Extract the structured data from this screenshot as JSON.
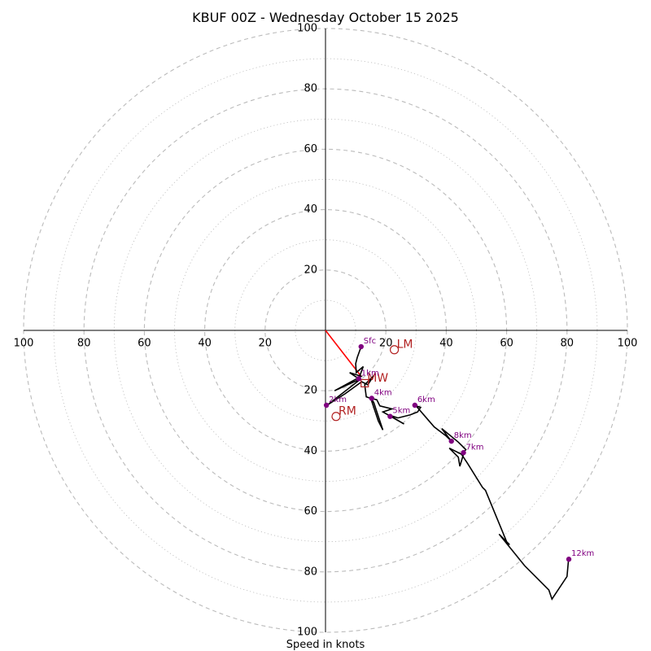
{
  "chart_data": {
    "type": "hodograph",
    "title": "KBUF 00Z - Wednesday October 15 2025",
    "xlabel": "Speed in knots",
    "ring_labels": [
      "20",
      "40",
      "60",
      "80",
      "100"
    ],
    "ring_max": 100,
    "colors": {
      "trace": "#000000",
      "points": "#800080",
      "labels": "#800080",
      "shear": "#ff0000",
      "storm_motion": "#b22222",
      "grid": "#bbbbbb",
      "axis": "#000000"
    },
    "trace": [
      [
        11.8,
        -5.4
      ],
      [
        10.5,
        -9.0
      ],
      [
        10.0,
        -11.0
      ],
      [
        10.2,
        -14.0
      ],
      [
        12.5,
        -12.0
      ],
      [
        11.0,
        -16.0
      ],
      [
        8.0,
        -14.0
      ],
      [
        11.8,
        -15.2
      ],
      [
        3.0,
        -20.0
      ],
      [
        9.5,
        -17.0
      ],
      [
        11.8,
        -16.0
      ],
      [
        0.5,
        -24.8
      ],
      [
        6.5,
        -21.0
      ],
      [
        12.0,
        -17.0
      ],
      [
        14.0,
        -18.0
      ],
      [
        16.0,
        -15.0
      ],
      [
        13.0,
        -18.0
      ],
      [
        13.5,
        -22.0
      ],
      [
        15.0,
        -22.5
      ],
      [
        17.5,
        -30.0
      ],
      [
        19.0,
        -33.0
      ],
      [
        16.0,
        -24.0
      ],
      [
        15.2,
        -22.5
      ],
      [
        17.0,
        -23.0
      ],
      [
        18.0,
        -25.0
      ],
      [
        22.0,
        -26.0
      ],
      [
        19.0,
        -27.0
      ],
      [
        26.0,
        -31.0
      ],
      [
        21.0,
        -28.0
      ],
      [
        24.0,
        -29.0
      ],
      [
        28.0,
        -28.0
      ],
      [
        30.5,
        -27.0
      ],
      [
        31.5,
        -25.5
      ],
      [
        30.0,
        -25.0
      ],
      [
        33.0,
        -28.5
      ],
      [
        36.0,
        -32.0
      ],
      [
        40.0,
        -35.0
      ],
      [
        41.5,
        -36.5
      ],
      [
        38.5,
        -32.5
      ],
      [
        44.0,
        -37.0
      ],
      [
        46.5,
        -39.5
      ],
      [
        46.0,
        -40.0
      ],
      [
        44.5,
        -45.0
      ],
      [
        44.0,
        -42.0
      ],
      [
        42.0,
        -40.0
      ],
      [
        41.0,
        -39.0
      ],
      [
        45.0,
        -41.0
      ],
      [
        47.0,
        -44.0
      ],
      [
        52.0,
        -52.0
      ],
      [
        53.0,
        -53.0
      ],
      [
        60.0,
        -70.0
      ],
      [
        61.0,
        -71.0
      ],
      [
        57.5,
        -67.5
      ],
      [
        66.0,
        -78.0
      ],
      [
        70.0,
        -82.0
      ],
      [
        74.0,
        -86.0
      ],
      [
        75.0,
        -89.0
      ],
      [
        80.0,
        -81.5
      ],
      [
        80.5,
        -75.8
      ]
    ],
    "points": [
      {
        "label": "Sfc",
        "u": 11.8,
        "v": -5.4
      },
      {
        "label": "1km",
        "u": 11.0,
        "v": -16.0
      },
      {
        "label": "2km",
        "u": 0.3,
        "v": -24.8
      },
      {
        "label": "4km",
        "u": 15.3,
        "v": -22.5
      },
      {
        "label": "5km",
        "u": 21.4,
        "v": -28.5
      },
      {
        "label": "6km",
        "u": 29.6,
        "v": -24.8
      },
      {
        "label": "8km",
        "u": 41.7,
        "v": -36.7
      },
      {
        "label": "7km",
        "u": 45.7,
        "v": -40.5
      },
      {
        "label": "12km",
        "u": 80.6,
        "v": -75.8
      }
    ],
    "shear_vector": {
      "from": [
        0,
        0
      ],
      "to": [
        11.8,
        -15.2
      ]
    },
    "storm_motion": [
      {
        "label": "LM",
        "u": 22.8,
        "v": -6.4,
        "marker": "circle"
      },
      {
        "label": "MW",
        "u": 13.0,
        "v": -17.5,
        "marker": "square"
      },
      {
        "label": "RM",
        "u": 3.5,
        "v": -28.5,
        "marker": "circle"
      }
    ]
  }
}
